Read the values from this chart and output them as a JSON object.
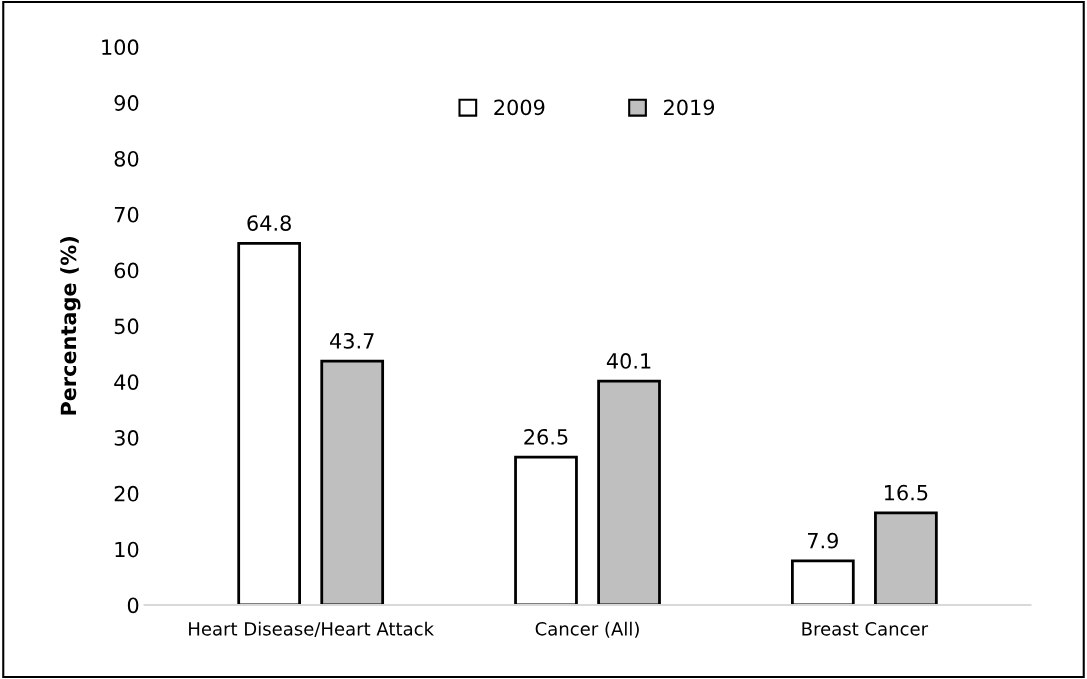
{
  "chart_data": {
    "type": "bar",
    "ylabel": "Percentage (%)",
    "categories": [
      "Heart Disease/Heart Attack",
      "Cancer (All)",
      "Breast Cancer"
    ],
    "series": [
      {
        "name": "2009",
        "color": "#ffffff",
        "values": [
          64.8,
          26.5,
          7.9
        ]
      },
      {
        "name": "2019",
        "color": "#bfbfbf",
        "values": [
          43.7,
          40.1,
          16.5
        ]
      }
    ],
    "ylim": [
      0,
      100
    ],
    "yticks": [
      0,
      10,
      20,
      30,
      40,
      50,
      60,
      70,
      80,
      90,
      100
    ],
    "data_labels": true,
    "legend": "top",
    "grid": false
  }
}
